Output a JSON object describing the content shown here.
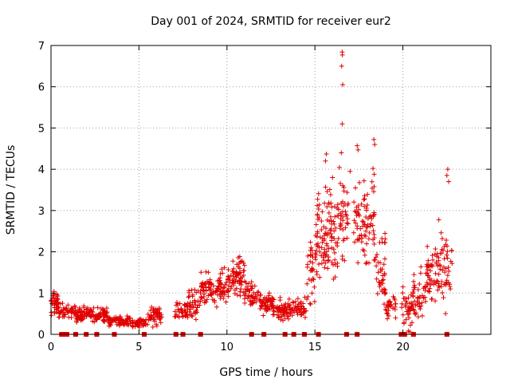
{
  "chart_data": {
    "type": "scatter",
    "title": "Day 001 of 2024, SRMTID for receiver eur2",
    "xlabel": "GPS time / hours",
    "ylabel": "SRMTID / TECUs",
    "xlim": [
      0,
      25
    ],
    "ylim": [
      0,
      7
    ],
    "xticks": [
      0,
      5,
      10,
      15,
      20
    ],
    "yticks": [
      0,
      1,
      2,
      3,
      4,
      5,
      6,
      7
    ],
    "grid": true,
    "marker": "plus",
    "color": "#e00000",
    "segments": [
      {
        "start": 0.0,
        "end": 0.4,
        "base": 0.75,
        "amp": 0.3,
        "count": 40
      },
      {
        "start": 0.4,
        "end": 1.4,
        "base": 0.55,
        "amp": 0.2,
        "count": 50
      },
      {
        "start": 1.4,
        "end": 2.5,
        "base": 0.5,
        "amp": 0.18,
        "count": 70
      },
      {
        "start": 2.5,
        "end": 3.2,
        "base": 0.45,
        "amp": 0.2,
        "count": 50
      },
      {
        "start": 3.2,
        "end": 4.5,
        "base": 0.33,
        "amp": 0.12,
        "count": 70
      },
      {
        "start": 4.5,
        "end": 5.5,
        "base": 0.28,
        "amp": 0.12,
        "count": 50
      },
      {
        "start": 5.5,
        "end": 6.3,
        "base": 0.45,
        "amp": 0.25,
        "count": 50
      },
      {
        "start": 7.0,
        "end": 7.8,
        "base": 0.55,
        "amp": 0.25,
        "count": 40
      },
      {
        "start": 7.8,
        "end": 8.5,
        "base": 0.75,
        "amp": 0.35,
        "count": 40
      },
      {
        "start": 8.5,
        "end": 9.5,
        "base": 1.05,
        "amp": 0.4,
        "count": 60
      },
      {
        "start": 9.5,
        "end": 10.2,
        "base": 1.2,
        "amp": 0.4,
        "count": 50
      },
      {
        "start": 10.2,
        "end": 11.0,
        "base": 1.4,
        "amp": 0.45,
        "count": 60
      },
      {
        "start": 11.0,
        "end": 11.8,
        "base": 1.0,
        "amp": 0.3,
        "count": 45
      },
      {
        "start": 11.8,
        "end": 12.6,
        "base": 0.75,
        "amp": 0.25,
        "count": 50
      },
      {
        "start": 12.6,
        "end": 13.5,
        "base": 0.6,
        "amp": 0.25,
        "count": 60
      },
      {
        "start": 13.5,
        "end": 14.5,
        "base": 0.6,
        "amp": 0.3,
        "count": 50
      },
      {
        "start": 14.5,
        "end": 15.0,
        "base": 1.6,
        "amp": 0.8,
        "count": 30
      },
      {
        "start": 15.0,
        "end": 15.6,
        "base": 2.3,
        "amp": 1.0,
        "count": 50
      },
      {
        "start": 15.6,
        "end": 16.3,
        "base": 2.5,
        "amp": 1.2,
        "count": 60
      },
      {
        "start": 16.3,
        "end": 16.9,
        "base": 2.8,
        "amp": 1.1,
        "count": 40
      },
      {
        "start": 17.2,
        "end": 17.8,
        "base": 2.6,
        "amp": 1.0,
        "count": 35
      },
      {
        "start": 17.8,
        "end": 18.4,
        "base": 2.8,
        "amp": 1.0,
        "count": 45
      },
      {
        "start": 18.4,
        "end": 19.0,
        "base": 1.6,
        "amp": 0.9,
        "count": 40
      },
      {
        "start": 19.0,
        "end": 19.6,
        "base": 0.7,
        "amp": 0.3,
        "count": 30
      },
      {
        "start": 19.9,
        "end": 20.5,
        "base": 0.6,
        "amp": 0.5,
        "count": 35
      },
      {
        "start": 20.5,
        "end": 21.3,
        "base": 1.0,
        "amp": 0.6,
        "count": 45
      },
      {
        "start": 21.3,
        "end": 22.0,
        "base": 1.5,
        "amp": 0.7,
        "count": 50
      },
      {
        "start": 22.0,
        "end": 22.8,
        "base": 1.6,
        "amp": 1.0,
        "count": 50
      }
    ],
    "peaks": [
      {
        "x": 16.55,
        "y": 6.84
      },
      {
        "x": 16.56,
        "y": 6.77
      },
      {
        "x": 16.52,
        "y": 6.5
      },
      {
        "x": 16.58,
        "y": 6.05
      },
      {
        "x": 16.55,
        "y": 5.1
      },
      {
        "x": 16.5,
        "y": 4.4
      },
      {
        "x": 18.35,
        "y": 4.72
      },
      {
        "x": 18.4,
        "y": 4.6
      },
      {
        "x": 17.4,
        "y": 4.57
      },
      {
        "x": 17.45,
        "y": 4.47
      },
      {
        "x": 15.65,
        "y": 4.37
      },
      {
        "x": 15.6,
        "y": 4.2
      },
      {
        "x": 22.55,
        "y": 4.0
      },
      {
        "x": 22.5,
        "y": 3.85
      },
      {
        "x": 22.6,
        "y": 3.7
      },
      {
        "x": 18.3,
        "y": 4.02
      },
      {
        "x": 17.0,
        "y": 3.95
      },
      {
        "x": 16.0,
        "y": 3.8
      }
    ],
    "zero_points": [
      0.6,
      0.8,
      0.9,
      1.4,
      2.0,
      2.6,
      3.6,
      5.3,
      7.1,
      7.5,
      8.5,
      11.4,
      12.1,
      13.3,
      13.8,
      14.4,
      15.2,
      16.8,
      17.4,
      19.9,
      20.1,
      20.6,
      22.5
    ]
  }
}
